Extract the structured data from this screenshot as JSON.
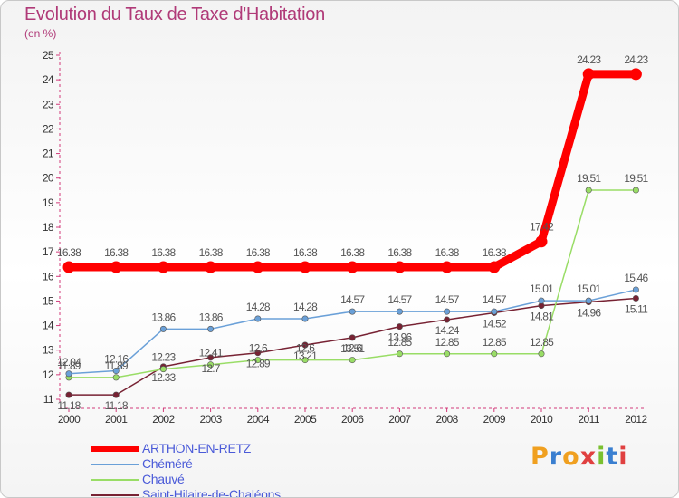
{
  "header": {
    "title": "Evolution du Taux de Taxe d'Habitation",
    "subtitle": "(en %)"
  },
  "logo": {
    "text": "Proxiti",
    "colors": [
      "#f0a020",
      "#3a7fd0",
      "#f0a020",
      "#e04040",
      "#7ac030",
      "#3a7fd0",
      "#e04040"
    ]
  },
  "chart_data": {
    "type": "line",
    "title": "Evolution du Taux de Taxe d'Habitation",
    "ylabel": "(en %)",
    "xlabel": "",
    "categories": [
      "2000",
      "2001",
      "2002",
      "2003",
      "2004",
      "2005",
      "2006",
      "2007",
      "2008",
      "2009",
      "2010",
      "2011",
      "2012"
    ],
    "ylim": [
      11,
      25
    ],
    "yticks": [
      "11",
      "12",
      "13",
      "14",
      "15",
      "16",
      "17",
      "18",
      "19",
      "20",
      "21",
      "22",
      "23",
      "24",
      "25"
    ],
    "grid": false,
    "legend": "bottom-left",
    "series": [
      {
        "name": "ARTHON-EN-RETZ",
        "color": "#ff0000",
        "values": [
          16.38,
          16.38,
          16.38,
          16.38,
          16.38,
          16.38,
          16.38,
          16.38,
          16.38,
          16.38,
          17.42,
          24.23,
          24.23
        ],
        "labels": [
          "16.38",
          "16.38",
          "16.38",
          "16.38",
          "16.38",
          "16.38",
          "16.38",
          "16.38",
          "16.38",
          "16.38",
          "17.42",
          "24.23",
          "24.23"
        ]
      },
      {
        "name": "Chéméré",
        "color": "#6aa0d8",
        "values": [
          12.04,
          12.16,
          13.86,
          13.86,
          14.28,
          14.28,
          14.57,
          14.57,
          14.57,
          14.57,
          15.01,
          15.01,
          15.46
        ],
        "labels": [
          "12.04",
          "12.16",
          "13.86",
          "13.86",
          "14.28",
          "14.28",
          "14.57",
          "14.57",
          "14.57",
          "14.57",
          "15.01",
          "15.01",
          "15.46"
        ]
      },
      {
        "name": "Chauvé",
        "color": "#99dd66",
        "values": [
          11.89,
          11.89,
          12.23,
          12.41,
          12.6,
          12.6,
          12.6,
          12.85,
          12.85,
          12.85,
          12.85,
          19.51,
          19.51
        ],
        "labels": [
          "11.89",
          "11.89",
          "12.23",
          "12.41",
          "12.6",
          "12.6",
          "12.6",
          "12.85",
          "12.85",
          "12.85",
          "12.85",
          "19.51",
          "19.51"
        ]
      },
      {
        "name": "Saint-Hilaire-de-Chaléons",
        "color": "#772233",
        "values": [
          11.18,
          11.18,
          12.33,
          12.7,
          12.89,
          13.21,
          13.51,
          13.96,
          14.24,
          14.52,
          14.81,
          14.96,
          15.11
        ],
        "labels": [
          "11.18",
          "11.18",
          "12.33",
          "12.7",
          "12.89",
          "13.21",
          "13.51",
          "13.96",
          "14.24",
          "14.52",
          "14.81",
          "14.96",
          "15.11"
        ]
      }
    ]
  }
}
